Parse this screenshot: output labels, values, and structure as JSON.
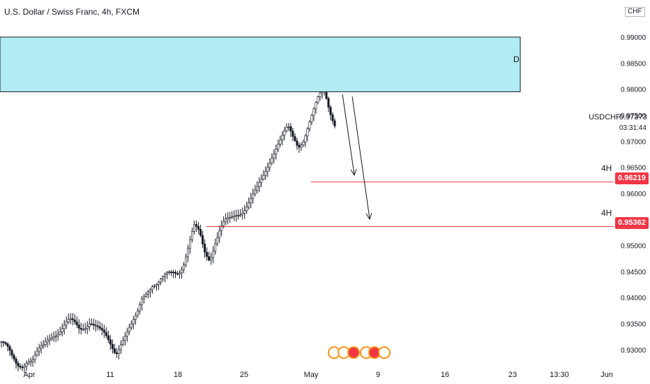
{
  "header": {
    "title": "U.S. Dollar / Swiss Franc, 4h, FXCM"
  },
  "price_axis": {
    "currency": "CHF",
    "ticks": [
      "0.99000",
      "0.98500",
      "0.98000",
      "0.97500",
      "0.97000",
      "0.96500",
      "0.96000",
      "0.95500",
      "0.95000",
      "0.94500",
      "0.94000",
      "0.93500",
      "0.93000"
    ],
    "current": {
      "symbol": "USDCHF",
      "price": "0.97373",
      "countdown": "03:31:44"
    }
  },
  "time_axis": {
    "ticks": [
      "Apr",
      "11",
      "18",
      "25",
      "May",
      "9",
      "16",
      "23",
      "13:30",
      "Jun"
    ]
  },
  "annotations": {
    "zone_label": "D",
    "levels": [
      {
        "timeframe": "4H",
        "price": "0.96219"
      },
      {
        "timeframe": "4H",
        "price": "0.95362"
      }
    ]
  },
  "colors": {
    "up": "#26a69a",
    "candle": "#131722",
    "zone_fill": "#b2ebf2",
    "level": "#f23645",
    "grid_text": "#131722"
  },
  "chart_data": {
    "type": "candlestick",
    "symbol": "USDCHF",
    "timeframe": "4h",
    "ylim": [
      0.9285,
      0.9955
    ],
    "zone": {
      "label": "D",
      "low": 0.9795,
      "high": 0.99
    },
    "levels": [
      0.96219,
      0.95362
    ],
    "close_path": [
      0.9315,
      0.93,
      0.928,
      0.927,
      0.9275,
      0.9285,
      0.928,
      0.929,
      0.93,
      0.932,
      0.9335,
      0.934,
      0.9345,
      0.935,
      0.9345,
      0.934,
      0.935,
      0.936,
      0.9345,
      0.933,
      0.932,
      0.931,
      0.93,
      0.932,
      0.933,
      0.934,
      0.936,
      0.94,
      0.942,
      0.943,
      0.9425,
      0.943,
      0.944,
      0.945,
      0.9455,
      0.947,
      0.95,
      0.953,
      0.952,
      0.949,
      0.948,
      0.951,
      0.953,
      0.954,
      0.9545,
      0.956,
      0.957,
      0.958,
      0.959,
      0.96,
      0.962,
      0.965,
      0.968,
      0.97,
      0.971,
      0.972,
      0.97,
      0.969,
      0.971,
      0.974,
      0.976,
      0.978,
      0.979,
      0.976,
      0.974
    ]
  }
}
